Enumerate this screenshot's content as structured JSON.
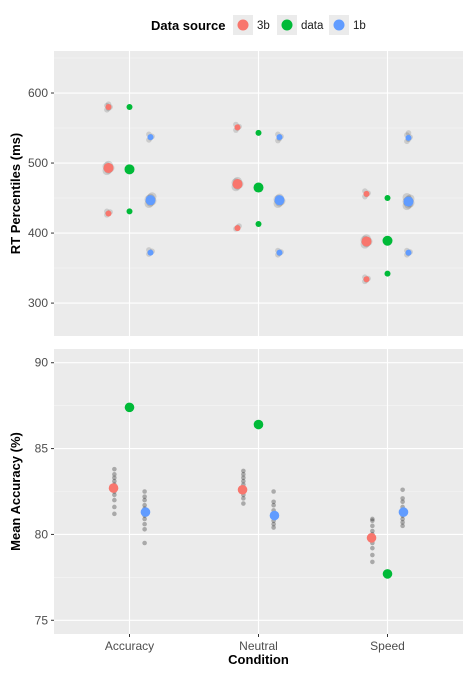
{
  "legend": {
    "title": "Data source",
    "entries": [
      {
        "label": "3b",
        "color": "#F8766D"
      },
      {
        "label": "data",
        "color": "#00BA38"
      },
      {
        "label": "1b",
        "color": "#619CFF"
      }
    ]
  },
  "xlabel": "Condition",
  "categories": [
    "Accuracy",
    "Neutral",
    "Speed"
  ],
  "colors": {
    "panel": "#EBEBEB",
    "grid_major": "#FFFFFF",
    "grid_minor": "#F5F5F5",
    "sim_points": "#000000"
  },
  "chart_data": [
    {
      "type": "scatter",
      "ylabel": "RT Percentiles (ms)",
      "ylim": [
        253,
        660
      ],
      "yticks": [
        "300",
        "400",
        "500",
        "600"
      ],
      "categories": [
        "Accuracy",
        "Neutral",
        "Speed"
      ],
      "series": [
        {
          "name": "3b",
          "values": [
            [
              428,
              493,
              580
            ],
            [
              407,
              470,
              551
            ],
            [
              334,
              388,
              456
            ]
          ]
        },
        {
          "name": "data",
          "values": [
            [
              431,
              491,
              580
            ],
            [
              413,
              465,
              543
            ],
            [
              342,
              389,
              450
            ]
          ]
        },
        {
          "name": "1b",
          "values": [
            [
              372,
              447,
              537
            ],
            [
              372,
              447,
              537
            ],
            [
              372,
              445,
              536
            ]
          ]
        }
      ],
      "simulations": [
        {
          "series": "3b",
          "values": [
            [
              426,
              430,
              428,
              492,
              495,
              490,
              494,
              575,
              580,
              583
            ]
          ]
        },
        {
          "series": "3b",
          "values": [
            []
          ]
        }
      ],
      "grid": true
    },
    {
      "type": "scatter",
      "ylabel": "Mean Accuracy (%)",
      "ylim": [
        74.2,
        90.8
      ],
      "yticks": [
        "75",
        "80",
        "85",
        "90"
      ],
      "categories": [
        "Accuracy",
        "Neutral",
        "Speed"
      ],
      "series": [
        {
          "name": "3b",
          "values": [
            82.7,
            82.6,
            79.8
          ]
        },
        {
          "name": "data",
          "values": [
            87.4,
            86.4,
            77.7
          ]
        },
        {
          "name": "1b",
          "values": [
            81.3,
            81.1,
            81.3
          ]
        }
      ],
      "simulations_3b": [
        [
          81.2,
          81.6,
          82.0,
          82.3,
          82.5,
          82.7,
          82.9,
          83.1,
          83.3,
          83.5,
          83.8
        ],
        [
          81.8,
          82.1,
          82.3,
          82.5,
          82.7,
          82.9,
          83.1,
          83.3,
          83.5,
          83.7
        ],
        [
          78.4,
          78.8,
          79.2,
          79.5,
          79.8,
          80.0,
          80.2,
          80.5,
          80.8,
          80.9
        ]
      ],
      "simulations_1b": [
        [
          79.5,
          80.3,
          80.6,
          80.9,
          81.1,
          81.3,
          81.5,
          81.7,
          82.0,
          82.2,
          82.5
        ],
        [
          80.4,
          80.6,
          80.8,
          81.0,
          81.2,
          81.4,
          81.7,
          81.9,
          82.5
        ],
        [
          80.5,
          80.7,
          80.9,
          81.1,
          81.3,
          81.6,
          81.9,
          82.1,
          82.6
        ]
      ],
      "grid": true
    }
  ],
  "rt_simulations": {
    "3b": [
      [
        [
          426,
          428,
          430,
          431
        ],
        [
          489,
          491,
          493,
          495,
          497
        ],
        [
          576,
          578,
          580,
          582,
          584
        ]
      ],
      [
        [
          406,
          408,
          410
        ],
        [
          466,
          468,
          470,
          472,
          474
        ],
        [
          547,
          550,
          552,
          555
        ]
      ],
      [
        [
          331,
          333,
          335,
          337
        ],
        [
          384,
          386,
          388,
          390,
          392
        ],
        [
          452,
          455,
          457,
          460
        ]
      ]
    ],
    "1b": [
      [
        [
          370,
          372,
          374,
          376
        ],
        [
          442,
          444,
          446,
          448,
          450,
          452
        ],
        [
          533,
          536,
          538,
          541
        ]
      ],
      [
        [
          369,
          371,
          373,
          375
        ],
        [
          442,
          444,
          446,
          448,
          450
        ],
        [
          532,
          535,
          538,
          541
        ]
      ],
      [
        [
          369,
          371,
          373,
          375
        ],
        [
          439,
          441,
          443,
          445,
          447,
          449,
          451
        ],
        [
          531,
          534,
          537,
          540,
          543
        ]
      ]
    ]
  }
}
